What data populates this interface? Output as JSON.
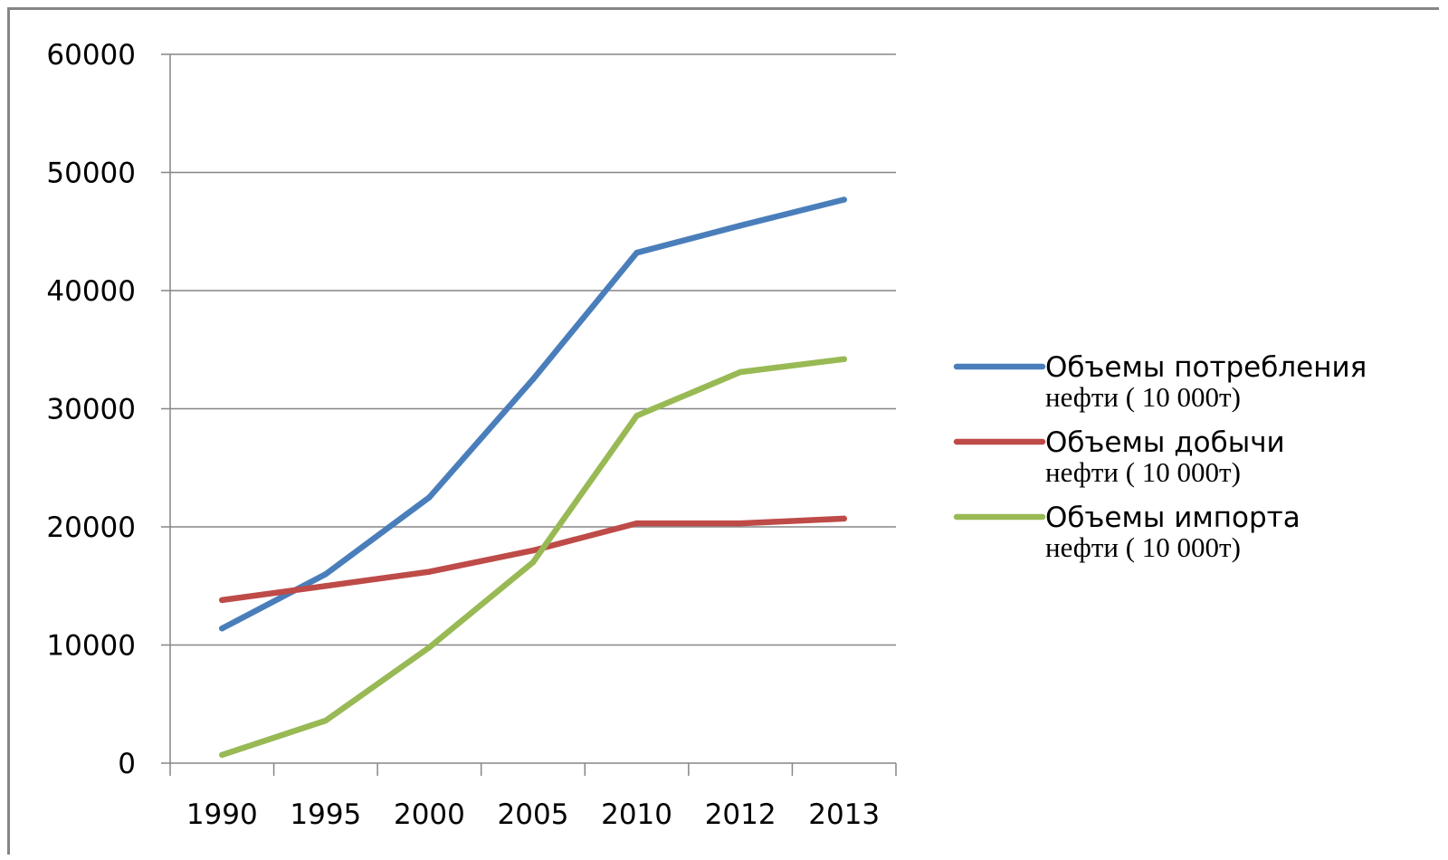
{
  "chart_data": {
    "type": "line",
    "categories": [
      "1990",
      "1995",
      "2000",
      "2005",
      "2010",
      "2012",
      "2013"
    ],
    "ylim": [
      0,
      60000
    ],
    "yticks": [
      "0",
      "10000",
      "20000",
      "30000",
      "40000",
      "50000",
      "60000"
    ],
    "grid": true,
    "legend_position": "right",
    "series": [
      {
        "name": "Объемы потребления нефти ( 10 000т)",
        "name_line1": "Объемы потребления",
        "name_line2": "нефти ( 10 000т)",
        "color": "#4a7ebb",
        "values": [
          11400,
          16000,
          22500,
          32500,
          43200,
          45500,
          47700
        ]
      },
      {
        "name": "Объемы добычи нефти ( 10 000т)",
        "name_line1": "Объемы добычи",
        "name_line2": "нефти ( 10 000т)",
        "color": "#be4b48",
        "values": [
          13800,
          15000,
          16200,
          18000,
          20300,
          20300,
          20700
        ]
      },
      {
        "name": "Объемы импорта нефти ( 10 000т)",
        "name_line1": "Объемы импорта",
        "name_line2": "нефти ( 10 000т)",
        "color": "#98b954",
        "values": [
          700,
          3600,
          9800,
          17000,
          29400,
          33100,
          34200
        ]
      }
    ]
  }
}
